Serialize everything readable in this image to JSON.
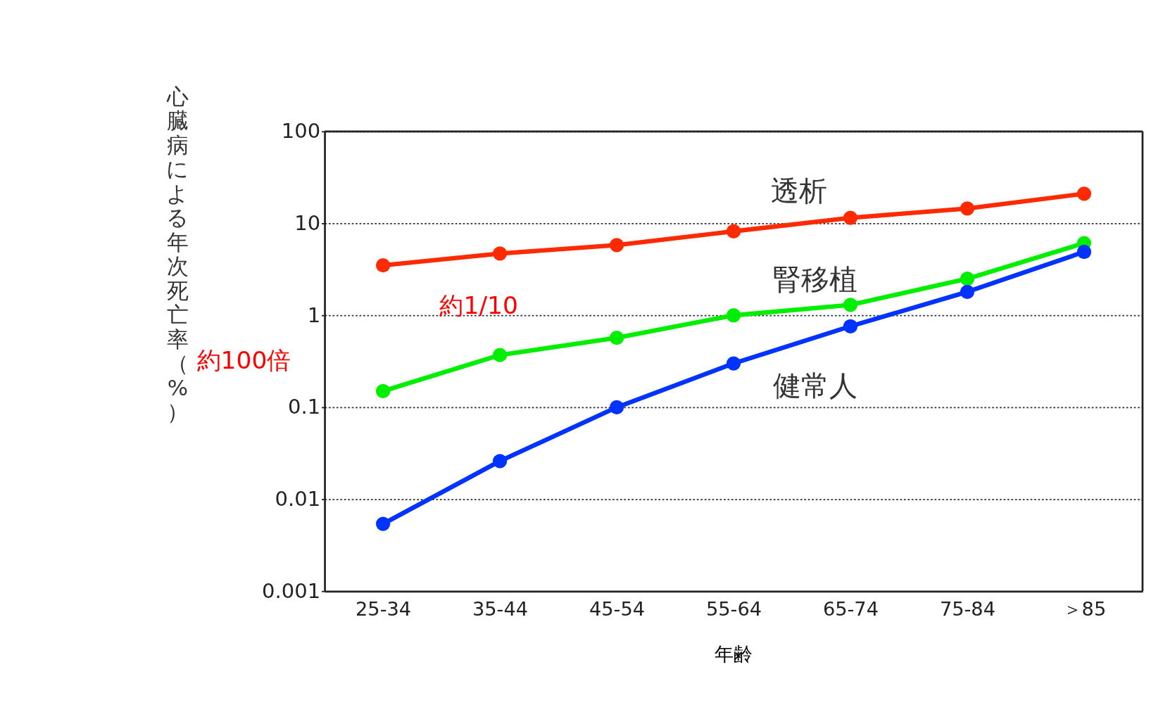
{
  "chart_data": {
    "type": "line",
    "xlabel": "年齢",
    "ylabel": "心臓病による年次死亡率（%）",
    "categories": [
      "25-34",
      "35-44",
      "45-54",
      "55-64",
      "65-74",
      "75-84",
      "＞85"
    ],
    "series": [
      {
        "name": "透析",
        "color": "#ff2a00",
        "values": [
          3.5,
          4.7,
          5.8,
          8.2,
          11.5,
          14.5,
          21
        ]
      },
      {
        "name": "腎移植",
        "color": "#00ee00",
        "values": [
          0.15,
          0.37,
          0.57,
          1.0,
          1.3,
          2.5,
          6.1
        ]
      },
      {
        "name": "健常人",
        "color": "#0033ff",
        "values": [
          0.0054,
          0.026,
          0.1,
          0.3,
          0.76,
          1.8,
          4.9
        ]
      }
    ],
    "log": true,
    "ylim": [
      0.001,
      100
    ],
    "yticks": [
      0.001,
      0.01,
      0.1,
      1,
      10,
      100
    ],
    "grid": "y",
    "marker": "circle",
    "line_style": "solid",
    "annotations": [
      "約1/10",
      "約100倍"
    ]
  }
}
